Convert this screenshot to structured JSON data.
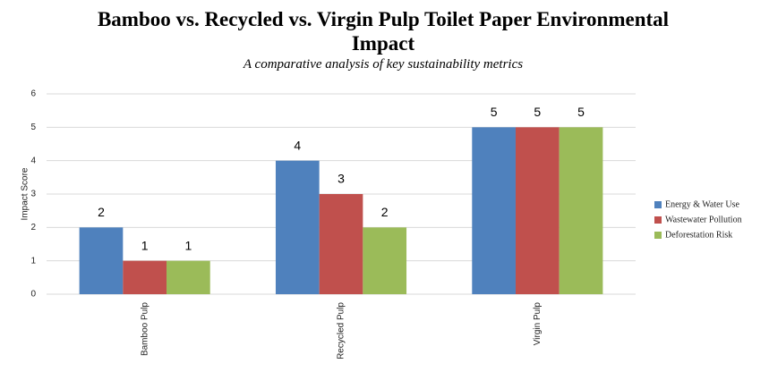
{
  "chart_data": {
    "type": "bar",
    "title": "Bamboo vs. Recycled vs. Virgin Pulp Toilet Paper Environmental Impact",
    "subtitle": "A comparative analysis of key sustainability metrics",
    "y_label": "Impact Score",
    "categories": [
      "Bamboo Pulp",
      "Recycled Pulp",
      "Virgin Pulp"
    ],
    "series": [
      {
        "name": "Energy & Water Use",
        "color": "#4f81bd",
        "values": [
          2,
          4,
          5
        ]
      },
      {
        "name": "Wastewater Pollution",
        "color": "#c0504d",
        "values": [
          1,
          3,
          5
        ]
      },
      {
        "name": "Deforestation Risk",
        "color": "#9bbb59",
        "values": [
          1,
          2,
          5
        ]
      }
    ],
    "ylim": [
      0,
      6
    ],
    "yticks": [
      0,
      1,
      2,
      3,
      4,
      5,
      6
    ],
    "grid": true,
    "legend": "right"
  }
}
